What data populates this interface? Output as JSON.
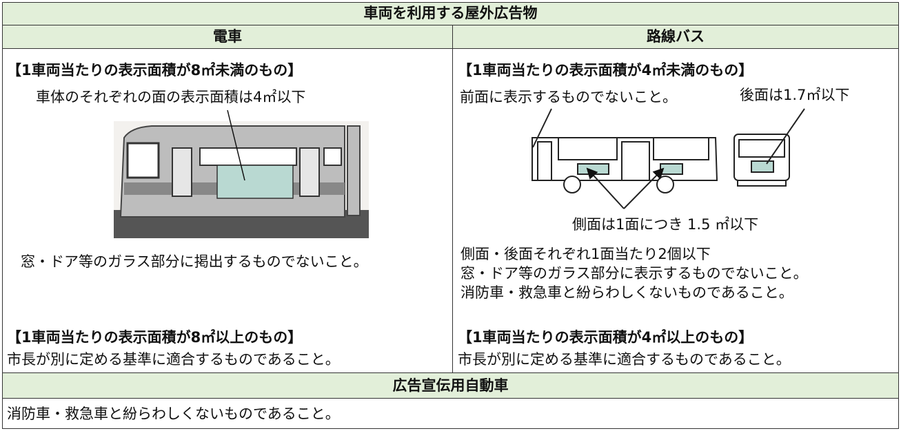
{
  "header": {
    "title": "車両を利用する屋外広告物"
  },
  "train": {
    "title": "電車",
    "heading_small": "【1車両当たりの表示面積が8㎡未満のもの】",
    "note_area": "車体のそれぞれの面の表示面積は4㎡以下",
    "note_glass": "窓・ドア等のガラス部分に掲出するものでないこと。",
    "heading_large": "【1車両当たりの表示面積が8㎡以上のもの】",
    "text_large": "市長が別に定める基準に適合するものであること。"
  },
  "bus": {
    "title": "路線バス",
    "heading_small": "【1車両当たりの表示面積が4㎡未満のもの】",
    "note_front": "前面に表示するものでないこと。",
    "note_rear": "後面は1.7㎡以下",
    "note_side": "側面は1面につき 1.5 ㎡以下",
    "conditions": [
      "側面・後面それぞれ1面当たり2個以下",
      "窓・ドア等のガラス部分に表示するものでないこと。",
      "消防車・救急車と紛らわしくないものであること。"
    ],
    "heading_large": "【1車両当たりの表示面積が4㎡以上のもの】",
    "text_large": "市長が別に定める基準に適合するものであること。"
  },
  "ad_vehicle": {
    "title": "広告宣伝用自動車",
    "text": "消防車・救急車と紛らわしくないものであること。"
  }
}
